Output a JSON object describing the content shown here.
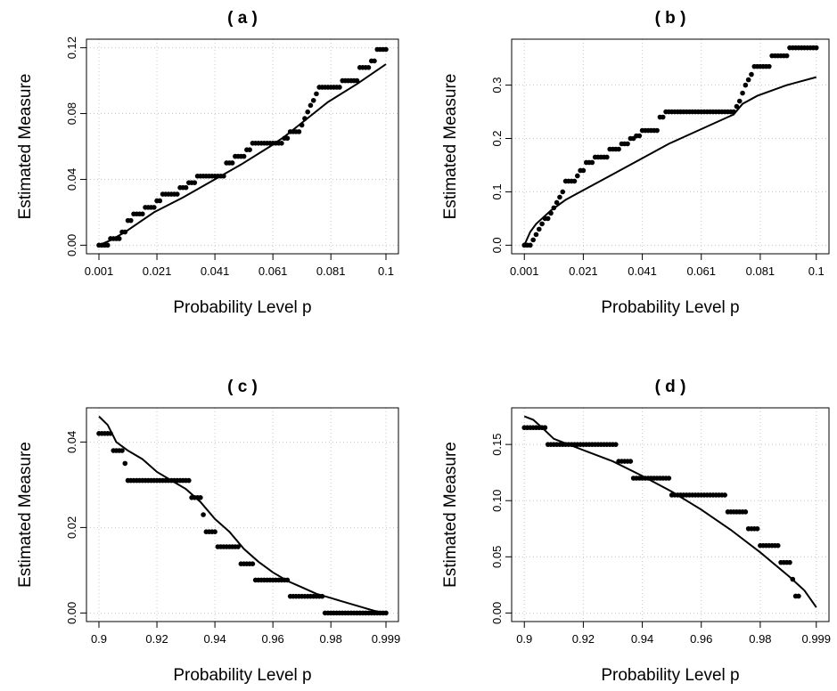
{
  "figure": {
    "xlabel": "Probability Level p",
    "ylabel": "Estimated Measure"
  },
  "chart_data": [
    {
      "panel": "a",
      "title": "( a )",
      "type": "scatter",
      "xlabel": "Probability Level p",
      "ylabel": "Estimated Measure",
      "xlim": [
        0.001,
        0.1
      ],
      "ylim": [
        0,
        0.12
      ],
      "xticks": [
        0.001,
        0.021,
        0.041,
        0.061,
        0.081,
        0.1
      ],
      "xtick_labels": [
        "0.001",
        "0.021",
        "0.041",
        "0.061",
        "0.081",
        "0.1"
      ],
      "yticks": [
        0,
        0.04,
        0.08,
        0.12
      ],
      "ytick_labels": [
        "0.00",
        "0.04",
        "0.08",
        "0.12"
      ],
      "grid": true,
      "series": [
        {
          "style": "points",
          "steps": [
            [
              0.001,
              0.004,
              0.0
            ],
            [
              0.005,
              0.008,
              0.004
            ],
            [
              0.009,
              0.01,
              0.008
            ],
            [
              0.011,
              0.012,
              0.015
            ],
            [
              0.013,
              0.016,
              0.019
            ],
            [
              0.017,
              0.02,
              0.023
            ],
            [
              0.021,
              0.022,
              0.027
            ],
            [
              0.023,
              0.028,
              0.031
            ],
            [
              0.029,
              0.031,
              0.035
            ],
            [
              0.032,
              0.034,
              0.038
            ],
            [
              0.035,
              0.044,
              0.042
            ],
            [
              0.045,
              0.047,
              0.05
            ],
            [
              0.048,
              0.051,
              0.054
            ],
            [
              0.052,
              0.053,
              0.058
            ],
            [
              0.054,
              0.064,
              0.062
            ],
            [
              0.065,
              0.066,
              0.065
            ],
            [
              0.067,
              0.07,
              0.069
            ],
            [
              0.071,
              0.071,
              0.073
            ],
            [
              0.072,
              0.072,
              0.077
            ],
            [
              0.073,
              0.073,
              0.081
            ],
            [
              0.074,
              0.074,
              0.085
            ],
            [
              0.075,
              0.075,
              0.088
            ],
            [
              0.076,
              0.076,
              0.092
            ],
            [
              0.077,
              0.084,
              0.096
            ],
            [
              0.085,
              0.09,
              0.1
            ],
            [
              0.091,
              0.094,
              0.108
            ],
            [
              0.095,
              0.096,
              0.112
            ],
            [
              0.097,
              0.1,
              0.119
            ]
          ]
        },
        {
          "style": "line",
          "x": [
            0.001,
            0.005,
            0.01,
            0.02,
            0.03,
            0.04,
            0.05,
            0.06,
            0.065,
            0.07,
            0.075,
            0.08,
            0.09,
            0.1
          ],
          "y": [
            0.0,
            0.003,
            0.008,
            0.02,
            0.029,
            0.039,
            0.049,
            0.06,
            0.066,
            0.073,
            0.08,
            0.087,
            0.098,
            0.11
          ]
        }
      ]
    },
    {
      "panel": "b",
      "title": "( b )",
      "type": "scatter",
      "xlabel": "Probability Level p",
      "ylabel": "Estimated Measure",
      "xlim": [
        0.001,
        0.1
      ],
      "ylim": [
        0,
        0.37
      ],
      "xticks": [
        0.001,
        0.021,
        0.041,
        0.061,
        0.081,
        0.1
      ],
      "xtick_labels": [
        "0.001",
        "0.021",
        "0.041",
        "0.061",
        "0.081",
        "0.1"
      ],
      "yticks": [
        0,
        0.1,
        0.2,
        0.3
      ],
      "ytick_labels": [
        "0.0",
        "0.1",
        "0.2",
        "0.3"
      ],
      "grid": true,
      "series": [
        {
          "style": "points",
          "steps": [
            [
              0.001,
              0.003,
              0.0
            ],
            [
              0.004,
              0.004,
              0.01
            ],
            [
              0.005,
              0.005,
              0.02
            ],
            [
              0.006,
              0.006,
              0.03
            ],
            [
              0.007,
              0.007,
              0.04
            ],
            [
              0.008,
              0.009,
              0.05
            ],
            [
              0.01,
              0.01,
              0.06
            ],
            [
              0.011,
              0.011,
              0.07
            ],
            [
              0.012,
              0.012,
              0.08
            ],
            [
              0.013,
              0.013,
              0.09
            ],
            [
              0.014,
              0.014,
              0.1
            ],
            [
              0.015,
              0.018,
              0.12
            ],
            [
              0.019,
              0.019,
              0.13
            ],
            [
              0.02,
              0.021,
              0.14
            ],
            [
              0.022,
              0.024,
              0.155
            ],
            [
              0.025,
              0.029,
              0.165
            ],
            [
              0.03,
              0.033,
              0.18
            ],
            [
              0.034,
              0.036,
              0.19
            ],
            [
              0.037,
              0.038,
              0.2
            ],
            [
              0.039,
              0.04,
              0.205
            ],
            [
              0.041,
              0.046,
              0.215
            ],
            [
              0.047,
              0.048,
              0.24
            ],
            [
              0.049,
              0.072,
              0.25
            ],
            [
              0.073,
              0.073,
              0.26
            ],
            [
              0.074,
              0.074,
              0.27
            ],
            [
              0.075,
              0.075,
              0.285
            ],
            [
              0.076,
              0.076,
              0.3
            ],
            [
              0.077,
              0.077,
              0.31
            ],
            [
              0.078,
              0.078,
              0.32
            ],
            [
              0.079,
              0.084,
              0.335
            ],
            [
              0.085,
              0.09,
              0.355
            ],
            [
              0.091,
              0.1,
              0.37
            ]
          ]
        },
        {
          "style": "line",
          "x": [
            0.001,
            0.003,
            0.005,
            0.01,
            0.015,
            0.02,
            0.03,
            0.04,
            0.05,
            0.06,
            0.07,
            0.072,
            0.075,
            0.08,
            0.09,
            0.1
          ],
          "y": [
            0.0,
            0.025,
            0.04,
            0.065,
            0.085,
            0.1,
            0.13,
            0.16,
            0.19,
            0.215,
            0.24,
            0.245,
            0.265,
            0.28,
            0.3,
            0.315
          ]
        }
      ]
    },
    {
      "panel": "c",
      "title": "( c )",
      "type": "scatter",
      "xlabel": "Probability Level p",
      "ylabel": "Estimated Measure",
      "xlim": [
        0.9,
        0.999
      ],
      "ylim": [
        0,
        0.046
      ],
      "xticks": [
        0.9,
        0.92,
        0.94,
        0.96,
        0.98,
        0.999
      ],
      "xtick_labels": [
        "0.9",
        "0.92",
        "0.94",
        "0.96",
        "0.98",
        "0.999"
      ],
      "yticks": [
        0,
        0.02,
        0.04
      ],
      "ytick_labels": [
        "0.00",
        "0.02",
        "0.04"
      ],
      "grid": true,
      "series": [
        {
          "style": "points",
          "steps": [
            [
              0.9,
              0.904,
              0.042
            ],
            [
              0.905,
              0.908,
              0.038
            ],
            [
              0.909,
              0.909,
              0.035
            ],
            [
              0.91,
              0.931,
              0.031
            ],
            [
              0.932,
              0.935,
              0.027
            ],
            [
              0.936,
              0.936,
              0.023
            ],
            [
              0.937,
              0.94,
              0.019
            ],
            [
              0.941,
              0.948,
              0.0155
            ],
            [
              0.949,
              0.953,
              0.0115
            ],
            [
              0.954,
              0.965,
              0.0077
            ],
            [
              0.966,
              0.977,
              0.0039
            ],
            [
              0.978,
              0.999,
              0.0
            ]
          ]
        },
        {
          "style": "line",
          "x": [
            0.9,
            0.903,
            0.906,
            0.91,
            0.915,
            0.92,
            0.925,
            0.93,
            0.935,
            0.94,
            0.945,
            0.95,
            0.955,
            0.96,
            0.965,
            0.97,
            0.975,
            0.98,
            0.985,
            0.99,
            0.995,
            0.999
          ],
          "y": [
            0.046,
            0.044,
            0.04,
            0.038,
            0.036,
            0.033,
            0.031,
            0.029,
            0.026,
            0.022,
            0.019,
            0.015,
            0.012,
            0.0095,
            0.0075,
            0.006,
            0.0045,
            0.0035,
            0.0025,
            0.0015,
            0.0005,
            0.0
          ]
        }
      ]
    },
    {
      "panel": "d",
      "title": "( d )",
      "type": "scatter",
      "xlabel": "Probability Level p",
      "ylabel": "Estimated Measure",
      "xlim": [
        0.9,
        0.999
      ],
      "ylim": [
        0,
        0.175
      ],
      "xticks": [
        0.9,
        0.92,
        0.94,
        0.96,
        0.98,
        0.999
      ],
      "xtick_labels": [
        "0.9",
        "0.92",
        "0.94",
        "0.96",
        "0.98",
        "0.999"
      ],
      "yticks": [
        0,
        0.05,
        0.1,
        0.15
      ],
      "ytick_labels": [
        "0.00",
        "0.05",
        "0.10",
        "0.15"
      ],
      "grid": true,
      "series": [
        {
          "style": "points",
          "steps": [
            [
              0.9,
              0.907,
              0.165
            ],
            [
              0.908,
              0.931,
              0.15
            ],
            [
              0.932,
              0.936,
              0.135
            ],
            [
              0.937,
              0.949,
              0.12
            ],
            [
              0.95,
              0.968,
              0.105
            ],
            [
              0.969,
              0.975,
              0.09
            ],
            [
              0.976,
              0.979,
              0.075
            ],
            [
              0.98,
              0.986,
              0.06
            ],
            [
              0.987,
              0.99,
              0.045
            ],
            [
              0.991,
              0.991,
              0.03
            ],
            [
              0.992,
              0.993,
              0.015
            ]
          ]
        },
        {
          "style": "line",
          "x": [
            0.9,
            0.903,
            0.906,
            0.91,
            0.92,
            0.93,
            0.94,
            0.95,
            0.96,
            0.97,
            0.98,
            0.985,
            0.99,
            0.995,
            0.999
          ],
          "y": [
            0.175,
            0.172,
            0.165,
            0.155,
            0.145,
            0.135,
            0.122,
            0.108,
            0.092,
            0.074,
            0.054,
            0.043,
            0.032,
            0.02,
            0.005
          ]
        }
      ]
    }
  ]
}
